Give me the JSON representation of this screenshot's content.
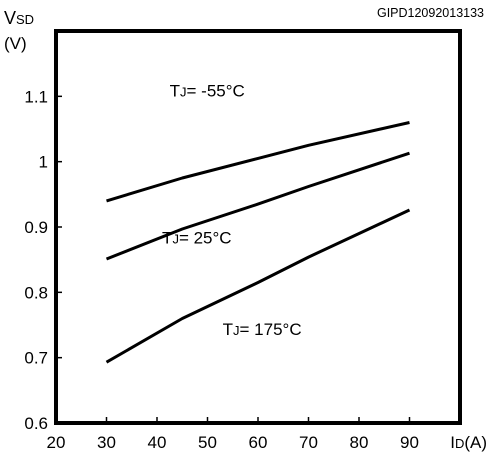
{
  "figure_id": "GIPD12092013133",
  "chart_data": {
    "type": "line",
    "xlabel": {
      "main": "I",
      "sub": "D",
      "unit": "(A)"
    },
    "ylabel": {
      "main": "V",
      "sub": "SD",
      "unit": "(V)"
    },
    "xlim": [
      20,
      100
    ],
    "ylim": [
      0.6,
      1.2
    ],
    "xticks": [
      20,
      30,
      40,
      50,
      60,
      70,
      80,
      90
    ],
    "yticks": [
      0.6,
      0.7,
      0.8,
      0.9,
      1.0,
      1.1
    ],
    "ytick_labels": [
      "0.6",
      "0.7",
      "0.8",
      "0.9",
      "1",
      "1.1"
    ],
    "grid": false,
    "series": [
      {
        "label_main": "T",
        "label_sub": "J",
        "label_rest": "= -55°C",
        "label_at": [
          42.5,
          1.1
        ],
        "x": [
          30,
          45,
          60,
          70,
          90
        ],
        "y": [
          0.94,
          0.975,
          1.005,
          1.025,
          1.06
        ]
      },
      {
        "label_main": "T",
        "label_sub": "J",
        "label_rest": "= 25°C",
        "label_at": [
          41,
          0.875
        ],
        "x": [
          30,
          45,
          60,
          70,
          90
        ],
        "y": [
          0.851,
          0.897,
          0.935,
          0.962,
          1.013
        ]
      },
      {
        "label_main": "T",
        "label_sub": "J",
        "label_rest": "= 175°C",
        "label_at": [
          53,
          0.735
        ],
        "x": [
          30,
          45,
          60,
          70,
          90
        ],
        "y": [
          0.693,
          0.76,
          0.815,
          0.854,
          0.926
        ]
      }
    ]
  }
}
